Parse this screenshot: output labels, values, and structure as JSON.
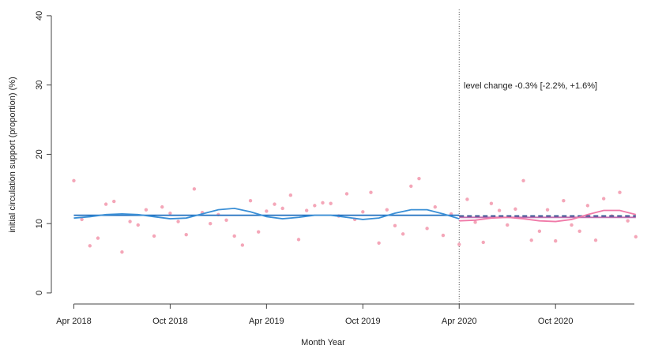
{
  "chart_data": {
    "type": "scatter",
    "xlabel": "Month Year",
    "ylabel": "initial circulation support (proportion) (%)",
    "annotation": "level change -0.3% [-2.2%, +1.6%]",
    "xlim": [
      -1.4,
      35.5
    ],
    "ylim": [
      -1.6,
      40.9
    ],
    "xticks": [
      {
        "value": 0,
        "label": "Apr 2018"
      },
      {
        "value": 6,
        "label": "Oct 2018"
      },
      {
        "value": 12,
        "label": "Apr 2019"
      },
      {
        "value": 18,
        "label": "Oct 2019"
      },
      {
        "value": 24,
        "label": "Apr 2020"
      },
      {
        "value": 30,
        "label": "Oct 2020"
      }
    ],
    "yticks": [
      0,
      10,
      20,
      30,
      40
    ],
    "vline": 24,
    "series": [
      {
        "mode": "points",
        "color": "#f4a6b8",
        "x": [
          0,
          0.5,
          1,
          1.5,
          2,
          2.5,
          3,
          3.5,
          4,
          4.5,
          5,
          5.5,
          6,
          6.5,
          7,
          7.5,
          8,
          8.5,
          9,
          9.5,
          10,
          10.5,
          11,
          11.5,
          12,
          12.5,
          13,
          13.5,
          14,
          14.5,
          15,
          15.5,
          16,
          16.5,
          17,
          17.5,
          18,
          18.5,
          19,
          19.5,
          20,
          20.5,
          21,
          21.5,
          22,
          22.5,
          23,
          23.5,
          24,
          24.5,
          25,
          25.5,
          26,
          26.5,
          27,
          27.5,
          28,
          28.5,
          29,
          29.5,
          30,
          30.5,
          31,
          31.5,
          32,
          32.5,
          33,
          33.5,
          34,
          34.5,
          35
        ],
        "values": [
          16.2,
          10.6,
          6.8,
          7.9,
          12.8,
          13.2,
          5.9,
          10.3,
          9.8,
          12.0,
          8.2,
          12.4,
          11.5,
          10.3,
          8.4,
          15.0,
          11.6,
          10.0,
          11.3,
          10.5,
          8.2,
          6.9,
          13.3,
          8.8,
          11.8,
          12.8,
          12.2,
          14.1,
          7.7,
          11.9,
          12.6,
          13.0,
          12.9,
          11.1,
          14.3,
          10.6,
          11.7,
          14.5,
          7.2,
          12.0,
          9.7,
          8.5,
          15.4,
          16.5,
          9.3,
          12.4,
          8.3,
          11.4,
          7.0,
          13.5,
          10.2,
          7.3,
          12.9,
          11.9,
          9.8,
          12.1,
          16.2,
          7.6,
          8.9,
          12.0,
          7.5,
          13.3,
          9.8,
          8.9,
          12.6,
          7.6,
          13.6,
          11.1,
          14.5,
          10.4,
          8.1
        ]
      },
      {
        "mode": "line",
        "color": "#1f6fbf",
        "x": [
          0,
          24
        ],
        "values": [
          11.2,
          11.2
        ]
      },
      {
        "mode": "line",
        "color": "#3a8fd6",
        "x": [
          0,
          1,
          2,
          3,
          4,
          5,
          6,
          7,
          8,
          9,
          10,
          11,
          12,
          13,
          14,
          15,
          16,
          17,
          18,
          19,
          20,
          21,
          22,
          23,
          24
        ],
        "values": [
          10.8,
          11.0,
          11.3,
          11.4,
          11.3,
          11.0,
          10.7,
          10.8,
          11.4,
          12.0,
          12.2,
          11.7,
          11.0,
          10.7,
          10.9,
          11.2,
          11.2,
          10.9,
          10.6,
          10.8,
          11.5,
          12.0,
          12.0,
          11.4,
          10.7
        ]
      },
      {
        "mode": "dashed",
        "color": "#2b4c8c",
        "x": [
          24,
          35
        ],
        "values": [
          11.1,
          11.1
        ]
      },
      {
        "mode": "line",
        "color": "#c06fb0",
        "x": [
          24,
          35
        ],
        "values": [
          10.9,
          10.9
        ]
      },
      {
        "mode": "line",
        "color": "#f07aa8",
        "x": [
          24,
          25,
          26,
          27,
          28,
          29,
          30,
          31,
          32,
          33,
          34,
          35
        ],
        "values": [
          10.4,
          10.5,
          10.8,
          10.9,
          10.7,
          10.4,
          10.3,
          10.6,
          11.3,
          11.9,
          11.9,
          11.3
        ]
      }
    ]
  }
}
